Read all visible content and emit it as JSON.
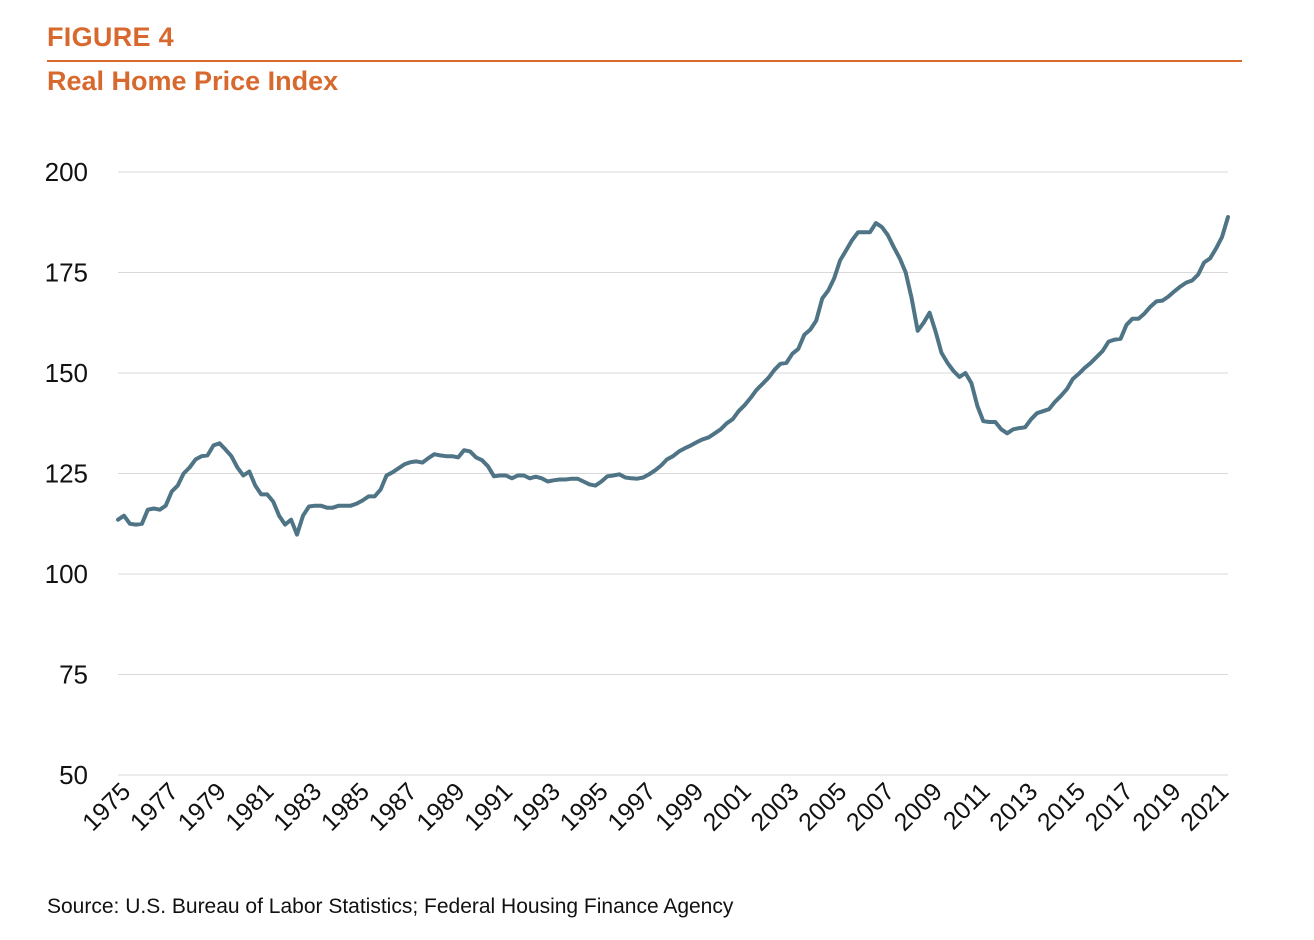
{
  "figure": {
    "label": "FIGURE 4",
    "title": "Real Home Price Index",
    "source": "Source: U.S. Bureau of Labor Statistics; Federal Housing Finance Agency"
  },
  "colors": {
    "accent": "#D8692E",
    "line": "#4E7485",
    "grid": "#D9D9D9"
  },
  "chart_data": {
    "type": "line",
    "title": "Real Home Price Index",
    "xlabel": "",
    "ylabel": "",
    "ylim": [
      50,
      200
    ],
    "xlim": [
      1975,
      2021.5
    ],
    "yticks": [
      50,
      75,
      100,
      125,
      150,
      175,
      200
    ],
    "xticks": [
      1975,
      1977,
      1979,
      1981,
      1983,
      1985,
      1987,
      1989,
      1991,
      1993,
      1995,
      1997,
      1999,
      2001,
      2003,
      2005,
      2007,
      2009,
      2011,
      2013,
      2015,
      2017,
      2019,
      2021
    ],
    "grid": true,
    "legend": "none",
    "series": [
      {
        "x": [
          1975.0,
          1975.25,
          1975.5,
          1975.75,
          1976.0,
          1976.25,
          1976.5,
          1976.75,
          1977.0,
          1977.25,
          1977.5,
          1977.75,
          1978.0,
          1978.25,
          1978.5,
          1978.75,
          1979.0,
          1979.25,
          1979.5,
          1979.75,
          1980.0,
          1980.25,
          1980.5,
          1980.75,
          1981.0,
          1981.25,
          1981.5,
          1981.75,
          1982.0,
          1982.25,
          1982.5,
          1982.75,
          1983.0,
          1983.25,
          1983.5,
          1983.75,
          1984.0,
          1984.25,
          1984.5,
          1984.75,
          1985.0,
          1985.25,
          1985.5,
          1985.75,
          1986.0,
          1986.25,
          1986.5,
          1986.75,
          1987.0,
          1987.25,
          1987.5,
          1987.75,
          1988.0,
          1988.25,
          1988.5,
          1988.75,
          1989.0,
          1989.25,
          1989.5,
          1989.75,
          1990.0,
          1990.25,
          1990.5,
          1990.75,
          1991.0,
          1991.25,
          1991.5,
          1991.75,
          1992.0,
          1992.25,
          1992.5,
          1992.75,
          1993.0,
          1993.25,
          1993.5,
          1993.75,
          1994.0,
          1994.25,
          1994.5,
          1994.75,
          1995.0,
          1995.25,
          1995.5,
          1995.75,
          1996.0,
          1996.25,
          1996.5,
          1996.75,
          1997.0,
          1997.25,
          1997.5,
          1997.75,
          1998.0,
          1998.25,
          1998.5,
          1998.75,
          1999.0,
          1999.25,
          1999.5,
          1999.75,
          2000.0,
          2000.25,
          2000.5,
          2000.75,
          2001.0,
          2001.25,
          2001.5,
          2001.75,
          2002.0,
          2002.25,
          2002.5,
          2002.75,
          2003.0,
          2003.25,
          2003.5,
          2003.75,
          2004.0,
          2004.25,
          2004.5,
          2004.75,
          2005.0,
          2005.25,
          2005.5,
          2005.75,
          2006.0,
          2006.25,
          2006.5,
          2006.75,
          2007.0,
          2007.25,
          2007.5,
          2007.75,
          2008.0,
          2008.25,
          2008.5,
          2008.75,
          2009.0,
          2009.25,
          2009.5,
          2009.75,
          2010.0,
          2010.25,
          2010.5,
          2010.75,
          2011.0,
          2011.25,
          2011.5,
          2011.75,
          2012.0,
          2012.25,
          2012.5,
          2012.75,
          2013.0,
          2013.25,
          2013.5,
          2013.75,
          2014.0,
          2014.25,
          2014.5,
          2014.75,
          2015.0,
          2015.25,
          2015.5,
          2015.75,
          2016.0,
          2016.25,
          2016.5,
          2016.75,
          2017.0,
          2017.25,
          2017.5,
          2017.75,
          2018.0,
          2018.25,
          2018.5,
          2018.75,
          2019.0,
          2019.25,
          2019.5,
          2019.75,
          2020.0,
          2020.25,
          2020.5,
          2020.75,
          2021.0,
          2021.25,
          2021.5
        ],
        "values": [
          113.5,
          114.5,
          112.5,
          112.3,
          112.5,
          116.0,
          116.3,
          116.0,
          117.0,
          120.5,
          122.0,
          125.0,
          126.5,
          128.5,
          129.3,
          129.5,
          132.0,
          132.5,
          131.0,
          129.3,
          126.5,
          124.5,
          125.5,
          122.0,
          119.8,
          119.8,
          118.0,
          114.5,
          112.3,
          113.5,
          109.8,
          114.5,
          116.8,
          117.0,
          117.0,
          116.5,
          116.5,
          117.0,
          117.0,
          117.0,
          117.5,
          118.3,
          119.3,
          119.3,
          121.0,
          124.5,
          125.3,
          126.3,
          127.3,
          127.8,
          128.0,
          127.7,
          128.8,
          129.8,
          129.5,
          129.3,
          129.3,
          129.0,
          130.8,
          130.5,
          129.0,
          128.3,
          126.8,
          124.3,
          124.5,
          124.5,
          123.8,
          124.5,
          124.5,
          123.8,
          124.2,
          123.8,
          123.0,
          123.3,
          123.5,
          123.5,
          123.7,
          123.7,
          123.0,
          122.3,
          122.0,
          123.0,
          124.3,
          124.5,
          124.8,
          124.0,
          123.8,
          123.7,
          124.0,
          124.8,
          125.8,
          127.0,
          128.5,
          129.3,
          130.5,
          131.3,
          132.0,
          132.8,
          133.5,
          134.0,
          135.0,
          136.0,
          137.5,
          138.5,
          140.5,
          142.0,
          143.8,
          145.8,
          147.3,
          148.8,
          150.8,
          152.3,
          152.5,
          154.8,
          156.0,
          159.5,
          160.8,
          163.0,
          168.5,
          170.5,
          173.5,
          178.0,
          180.5,
          183.0,
          185.0,
          185.0,
          185.0,
          187.3,
          186.3,
          184.3,
          181.3,
          178.5,
          175.0,
          168.5,
          160.5,
          162.5,
          165.0,
          160.3,
          155.0,
          152.5,
          150.5,
          149.0,
          150.0,
          147.5,
          141.8,
          138.0,
          137.8,
          137.8,
          136.0,
          135.0,
          136.0,
          136.3,
          136.5,
          138.5,
          140.0,
          140.5,
          141.0,
          142.8,
          144.3,
          146.0,
          148.5,
          149.8,
          151.3,
          152.5,
          154.0,
          155.5,
          157.8,
          158.3,
          158.5,
          162.0,
          163.5,
          163.5,
          164.8,
          166.5,
          167.8,
          168.0,
          169.0,
          170.3,
          171.5,
          172.5,
          173.0,
          174.5,
          177.5,
          178.5,
          181.0,
          183.8,
          188.8
        ]
      }
    ]
  }
}
